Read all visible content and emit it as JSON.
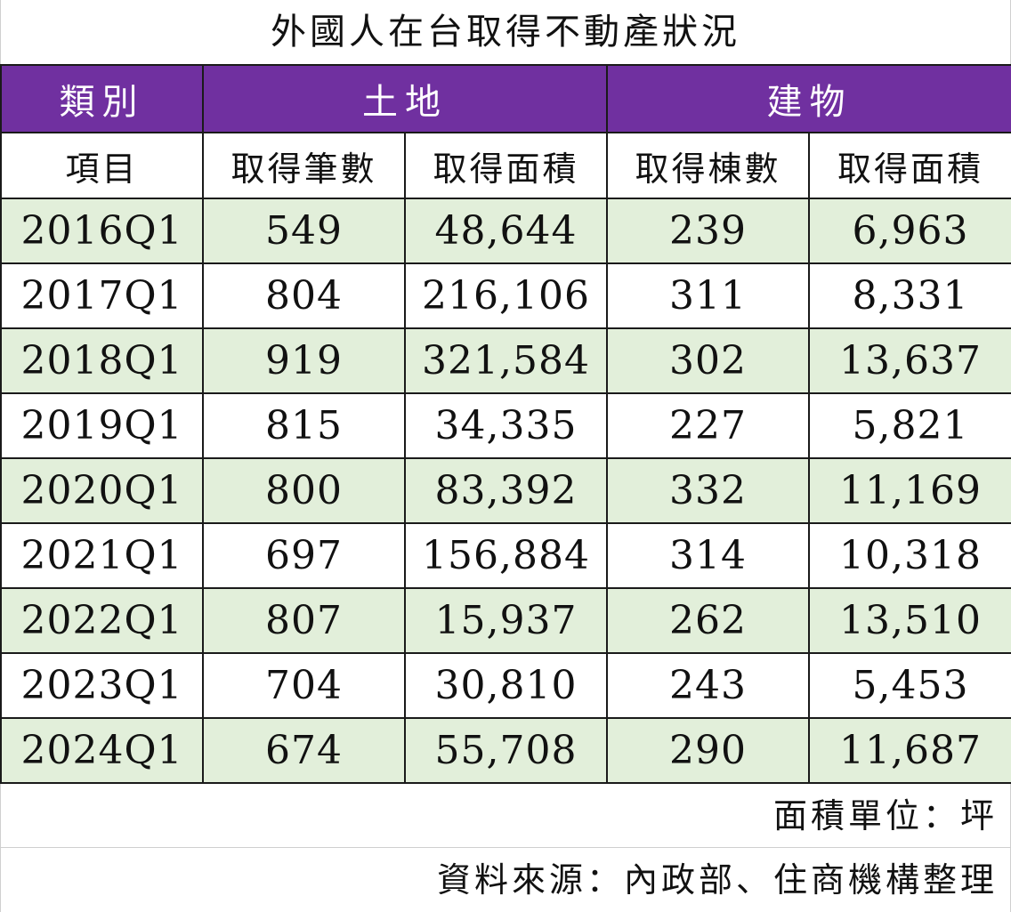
{
  "title": "外國人在台取得不動產狀況",
  "colors": {
    "header_bg": "#7030a0",
    "header_text": "#ffffff",
    "shaded_row_bg": "#e2efda",
    "plain_row_bg": "#ffffff",
    "border": "#1a1a1a"
  },
  "header": {
    "category_label": "類別",
    "land_label": "土地",
    "building_label": "建物",
    "item_label": "項目",
    "land_count_label": "取得筆數",
    "land_area_label": "取得面積",
    "building_count_label": "取得棟數",
    "building_area_label": "取得面積"
  },
  "rows": [
    {
      "period": "2016Q1",
      "land_count": "549",
      "land_area": "48,644",
      "building_count": "239",
      "building_area": "6,963"
    },
    {
      "period": "2017Q1",
      "land_count": "804",
      "land_area": "216,106",
      "building_count": "311",
      "building_area": "8,331"
    },
    {
      "period": "2018Q1",
      "land_count": "919",
      "land_area": "321,584",
      "building_count": "302",
      "building_area": "13,637"
    },
    {
      "period": "2019Q1",
      "land_count": "815",
      "land_area": "34,335",
      "building_count": "227",
      "building_area": "5,821"
    },
    {
      "period": "2020Q1",
      "land_count": "800",
      "land_area": "83,392",
      "building_count": "332",
      "building_area": "11,169"
    },
    {
      "period": "2021Q1",
      "land_count": "697",
      "land_area": "156,884",
      "building_count": "314",
      "building_area": "10,318"
    },
    {
      "period": "2022Q1",
      "land_count": "807",
      "land_area": "15,937",
      "building_count": "262",
      "building_area": "13,510"
    },
    {
      "period": "2023Q1",
      "land_count": "704",
      "land_area": "30,810",
      "building_count": "243",
      "building_area": "5,453"
    },
    {
      "period": "2024Q1",
      "land_count": "674",
      "land_area": "55,708",
      "building_count": "290",
      "building_area": "11,687"
    }
  ],
  "note": "面積單位：坪",
  "source": "資料來源：內政部、住商機構整理"
}
